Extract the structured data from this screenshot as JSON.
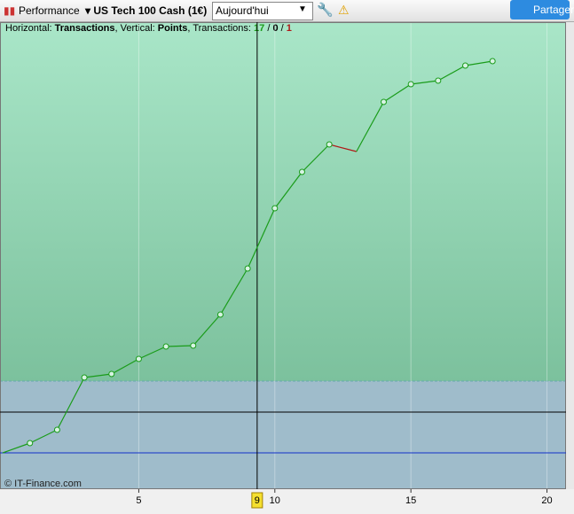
{
  "toolbar": {
    "title": "Performance",
    "instrument": "US Tech 100 Cash (1€)",
    "period": "Aujourd'hui",
    "share": "Partager"
  },
  "chart_data": {
    "type": "line",
    "info": {
      "h_prefix": "Horizontal: ",
      "h_label": "Transactions",
      "v_prefix": ", Vertical: ",
      "v_label": "Points",
      "t_prefix": ", Transactions: ",
      "wins": "17",
      "sep1": " / ",
      "even": "0",
      "sep2": " / ",
      "losses": "1"
    },
    "watermark": "© IT-Finance.com",
    "x": [
      0,
      1,
      2,
      3,
      4,
      5,
      6,
      7,
      8,
      9,
      10,
      11,
      12,
      13,
      14,
      15,
      16,
      17,
      18
    ],
    "series": [
      {
        "name": "Points",
        "color": "#1a9c1a",
        "down_color": "#b01818",
        "values": [
          0,
          1.1,
          2.6,
          8.5,
          8.9,
          10.6,
          12,
          12.1,
          15.6,
          20.8,
          27.6,
          31.7,
          34.8,
          34,
          39.6,
          41.6,
          42,
          43.7,
          44.2
        ]
      }
    ],
    "xlim": [
      -0.1,
      20.7
    ],
    "xticks": [
      5,
      10,
      15,
      20
    ],
    "ylim": [
      -4.1,
      48.6
    ],
    "cursor": {
      "value": 9.35,
      "label": "9"
    },
    "zone_split": 8.1,
    "hlines": [
      {
        "value": 4.6,
        "color": "#000000"
      },
      {
        "value": 0,
        "color": "#1030c8"
      }
    ]
  }
}
